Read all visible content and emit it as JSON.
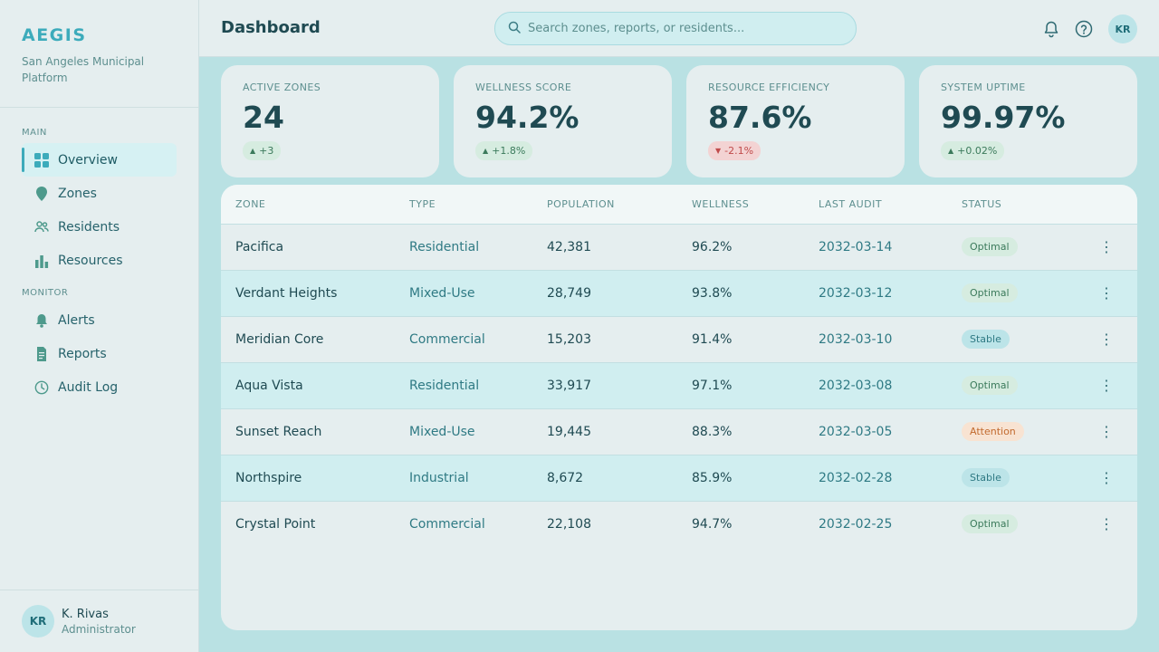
{
  "brand": {
    "name": "AEGIS",
    "subtitle": "San Angeles Municipal Platform"
  },
  "nav": {
    "main_section": "MAIN",
    "main_items": [
      {
        "label": "Overview",
        "icon": "grid-icon",
        "active": true
      },
      {
        "label": "Zones",
        "icon": "map-pin-icon"
      },
      {
        "label": "Residents",
        "icon": "users-icon"
      },
      {
        "label": "Resources",
        "icon": "bar-chart-icon"
      }
    ],
    "monitor_section": "MONITOR",
    "monitor_items": [
      {
        "label": "Alerts",
        "icon": "bell-icon"
      },
      {
        "label": "Reports",
        "icon": "document-icon"
      },
      {
        "label": "Audit Log",
        "icon": "clock-icon"
      }
    ]
  },
  "user": {
    "initials": "KR",
    "name": "K. Rivas",
    "role": "Administrator"
  },
  "header": {
    "title": "Dashboard",
    "search_placeholder": "Search zones, reports, or residents...",
    "avatar_initials": "KR"
  },
  "stats": [
    {
      "label": "ACTIVE ZONES",
      "value": "24",
      "delta": "+3",
      "direction": "up"
    },
    {
      "label": "WELLNESS SCORE",
      "value": "94.2%",
      "delta": "+1.8%",
      "direction": "up"
    },
    {
      "label": "RESOURCE EFFICIENCY",
      "value": "87.6%",
      "delta": "-2.1%",
      "direction": "down"
    },
    {
      "label": "SYSTEM UPTIME",
      "value": "99.97%",
      "delta": "+0.02%",
      "direction": "up"
    }
  ],
  "table": {
    "columns": [
      "ZONE",
      "TYPE",
      "POPULATION",
      "WELLNESS",
      "LAST AUDIT",
      "STATUS"
    ],
    "rows": [
      {
        "zone": "Pacifica",
        "type": "Residential",
        "population": "42,381",
        "wellness": "96.2%",
        "audit": "2032-03-14",
        "status": "Optimal"
      },
      {
        "zone": "Verdant Heights",
        "type": "Mixed-Use",
        "population": "28,749",
        "wellness": "93.8%",
        "audit": "2032-03-12",
        "status": "Optimal"
      },
      {
        "zone": "Meridian Core",
        "type": "Commercial",
        "population": "15,203",
        "wellness": "91.4%",
        "audit": "2032-03-10",
        "status": "Stable"
      },
      {
        "zone": "Aqua Vista",
        "type": "Residential",
        "population": "33,917",
        "wellness": "97.1%",
        "audit": "2032-03-08",
        "status": "Optimal"
      },
      {
        "zone": "Sunset Reach",
        "type": "Mixed-Use",
        "population": "19,445",
        "wellness": "88.3%",
        "audit": "2032-03-05",
        "status": "Attention"
      },
      {
        "zone": "Northspire",
        "type": "Industrial",
        "population": "8,672",
        "wellness": "85.9%",
        "audit": "2032-02-28",
        "status": "Stable"
      },
      {
        "zone": "Crystal Point",
        "type": "Commercial",
        "population": "22,108",
        "wellness": "94.7%",
        "audit": "2032-02-25",
        "status": "Optimal"
      }
    ]
  },
  "colors": {
    "accent": "#3cabbb",
    "optimal": "#3b7a5b",
    "stable": "#2f7a84",
    "attention": "#c26a2e",
    "down": "#c04b4b"
  }
}
